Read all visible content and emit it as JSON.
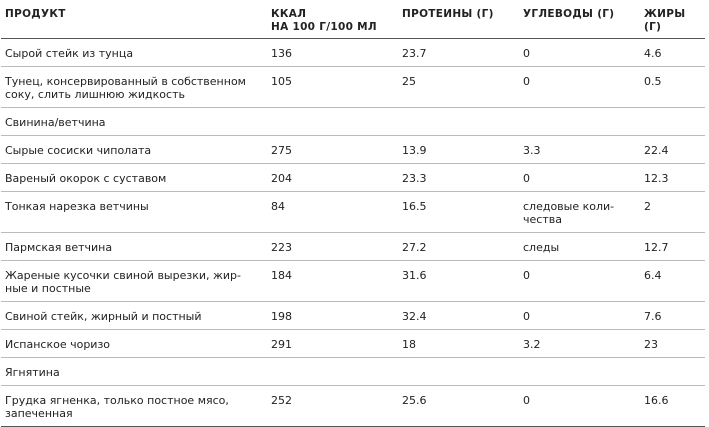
{
  "table": {
    "header": [
      "ПРОДУКТ",
      "ККАЛ\nНА 100 Г/100 МЛ",
      "ПРОТЕИНЫ (Г)",
      "УГЛЕВОДЫ (Г)",
      "ЖИРЫ (Г)"
    ],
    "rows": [
      [
        "Сырой стейк из тунца",
        "136",
        "23.7",
        "0",
        "4.6"
      ],
      [
        "Тунец, консервированный в собственном\nсоку, слить лишнюю жидкость",
        "105",
        "25",
        "0",
        "0.5"
      ],
      [
        "Свинина/ветчина"
      ],
      [
        "Сырые сосиски чиполата",
        "275",
        "13.9",
        "3.3",
        "22.4"
      ],
      [
        "Вареный окорок с суставом",
        "204",
        "23.3",
        "0",
        "12.3"
      ],
      [
        "Тонкая нарезка ветчины",
        "84",
        "16.5",
        "следовые коли-\nчества",
        "2"
      ],
      [
        "Пармская ветчина",
        "223",
        "27.2",
        "следы",
        "12.7"
      ],
      [
        "Жареные кусочки свиной вырезки, жир-\nные и постные",
        "184",
        "31.6",
        "0",
        "6.4"
      ],
      [
        "Свиной стейк, жирный и постный",
        "198",
        "32.4",
        "0",
        "7.6"
      ],
      [
        "Испанское чоризо",
        "291",
        "18",
        "3.2",
        "23"
      ],
      [
        "Ягнятина"
      ],
      [
        "Грудка ягненка, только постное мясо,\nзапеченная",
        "252",
        "25.6",
        "0",
        "16.6"
      ]
    ]
  }
}
